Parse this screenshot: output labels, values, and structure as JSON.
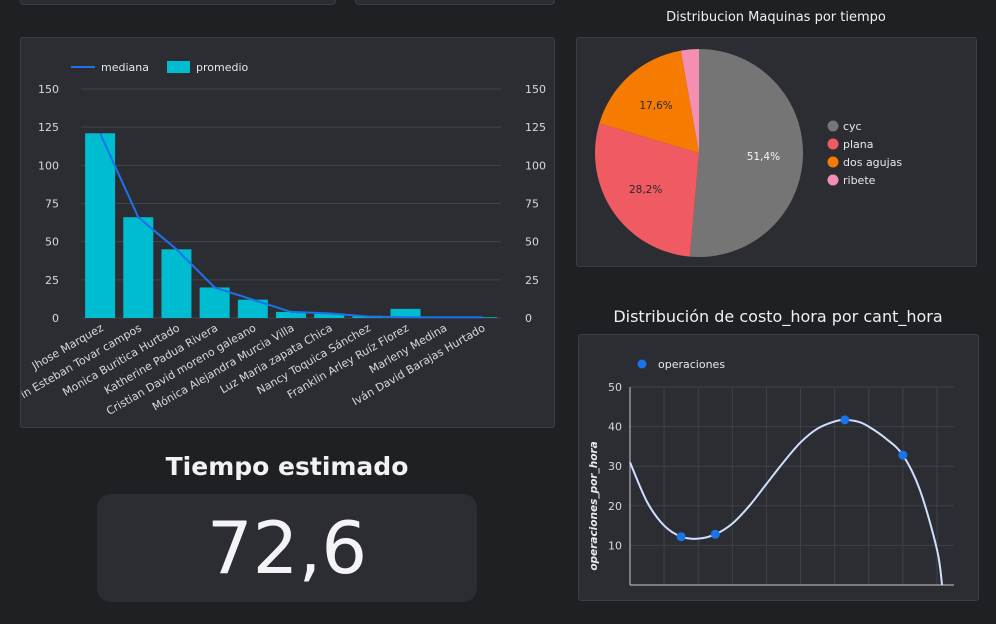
{
  "bar_panel": {
    "legend": {
      "median_label": "mediana",
      "mean_label": "promedio"
    },
    "colors": {
      "bar": "#00bcd0",
      "line": "#1a73e8",
      "grid": "#41444b",
      "axis_text": "#d8d8dc"
    }
  },
  "pie_panel": {
    "title": "Distribucion  Maquinas por tiempo",
    "colors": [
      "#757575",
      "#f05a63",
      "#f57c00",
      "#f48fb1"
    ]
  },
  "scatter_panel": {
    "title": "Distribución de costo_hora por cant_hora",
    "legend_label": "operaciones",
    "colors": {
      "point": "#1a73e8",
      "curve": "#cfe0ff",
      "grid": "#3f4249"
    }
  },
  "kpi": {
    "title": "Tiempo estimado",
    "value": "72,6"
  },
  "chart_data": [
    {
      "type": "bar",
      "categories": [
        "Jhose Marquez",
        "Kevin Esteban Tovar campos",
        "Monica Buritica Hurtado",
        "Katherine Padua Rivera",
        "Cristian David moreno galeano",
        "Mónica Alejandra Murcia Villa",
        "Luz Maria zapata Chica",
        "Nancy Toquica Sánchez",
        "Franklin Arley Ruíz Florez",
        "Marleny Medina",
        "Iván David Barajas Hurtado"
      ],
      "series": [
        {
          "name": "promedio",
          "type": "bar",
          "values": [
            121,
            66,
            45,
            20,
            12,
            4,
            3,
            1,
            6,
            0.5,
            0.5
          ]
        },
        {
          "name": "mediana",
          "type": "line",
          "values": [
            121,
            66,
            45,
            20,
            12,
            4,
            3,
            1,
            0.5,
            0.5,
            0.5
          ]
        }
      ],
      "yticks": [
        0,
        25,
        50,
        75,
        100,
        125,
        150
      ],
      "ylim": [
        0,
        150
      ],
      "legend": "top-left",
      "grid": true
    },
    {
      "type": "pie",
      "labels": [
        "cyc",
        "plana",
        "dos agujas",
        "ribete"
      ],
      "values": [
        51.4,
        28.2,
        17.6,
        2.8
      ],
      "value_labels": [
        "51,4%",
        "28,2%",
        "17,6%",
        ""
      ],
      "title": "Distribucion  Maquinas por tiempo",
      "legend": "right"
    },
    {
      "type": "scatter",
      "title": "Distribución de costo_hora por cant_hora",
      "series": [
        {
          "name": "operaciones",
          "x": [
            1.5,
            2.5,
            6.3,
            8
          ],
          "y": [
            12.2,
            12.8,
            41.7,
            32.8
          ]
        }
      ],
      "xlim": [
        0,
        9.5
      ],
      "ylim": [
        0,
        50
      ],
      "yticks": [
        10,
        20,
        30,
        40,
        50
      ],
      "ylabel": "operaciones_por_hora",
      "trendline_points": [
        [
          0,
          31
        ],
        [
          0.5,
          21
        ],
        [
          1,
          15
        ],
        [
          1.5,
          12.2
        ],
        [
          2,
          11.7
        ],
        [
          2.5,
          12.8
        ],
        [
          3,
          15.5
        ],
        [
          3.5,
          20
        ],
        [
          4,
          25.5
        ],
        [
          4.5,
          31
        ],
        [
          5,
          36
        ],
        [
          5.5,
          39.5
        ],
        [
          6,
          41.3
        ],
        [
          6.3,
          41.7
        ],
        [
          6.7,
          41.2
        ],
        [
          7,
          40
        ],
        [
          7.5,
          37
        ],
        [
          8,
          32.8
        ],
        [
          8.5,
          24
        ],
        [
          9,
          9
        ],
        [
          9.15,
          0
        ]
      ],
      "legend": "top-left",
      "grid": true
    }
  ]
}
